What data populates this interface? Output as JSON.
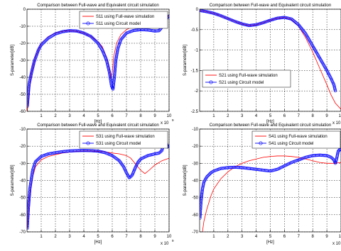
{
  "chart_data": [
    {
      "type": "line",
      "title": "Comparison between Full-wave and Equivalent circuit simulation",
      "xlabel": "[Hz]",
      "ylabel": "S-parameter[dB]",
      "x_exponent": "x 10",
      "x_exponent_power": "9",
      "xlim": [
        0,
        10
      ],
      "ylim": [
        -60,
        0
      ],
      "xticks": [
        "1",
        "2",
        "3",
        "4",
        "5",
        "6",
        "7",
        "8",
        "9",
        "10"
      ],
      "yticks": [
        "-60",
        "-50",
        "-40",
        "-30",
        "-20",
        "-10",
        "0"
      ],
      "grid": true,
      "legend_position": "top-right",
      "series": [
        {
          "name": "S11 using Full-wave simulation",
          "style": "line",
          "color": "#ff0000",
          "x": [
            0.02,
            0.3,
            0.6,
            1.0,
            1.5,
            2.0,
            2.5,
            3.0,
            3.5,
            4.0,
            4.5,
            5.0,
            5.3,
            5.6,
            5.8,
            5.9,
            6.0,
            6.1,
            6.3,
            6.6,
            7.0,
            7.5,
            8.0,
            8.5,
            9.0,
            9.4,
            9.7,
            9.9,
            10.0
          ],
          "y": [
            -60,
            -38,
            -28,
            -20,
            -16,
            -14,
            -13,
            -12.6,
            -13,
            -14,
            -16,
            -19,
            -22,
            -28,
            -35,
            -41,
            -37,
            -28,
            -20,
            -15,
            -12,
            -10,
            -9,
            -8.5,
            -8,
            -7,
            -5.5,
            -4.2,
            -4
          ]
        },
        {
          "name": "S11 using Circuit model",
          "style": "circles",
          "color": "#0000ff",
          "x": [
            0.02,
            0.15,
            0.3,
            0.5,
            0.8,
            1.0,
            1.5,
            2.0,
            2.5,
            3.0,
            3.5,
            4.0,
            4.5,
            5.0,
            5.3,
            5.6,
            5.8,
            5.95,
            6.05,
            6.15,
            6.25,
            6.4,
            6.6,
            7.0,
            7.5,
            8.0,
            8.5,
            9.0,
            9.3,
            9.5,
            9.6,
            9.7,
            9.8,
            9.9,
            10.0
          ],
          "y": [
            -57,
            -44,
            -38,
            -31,
            -24,
            -21,
            -17,
            -14.5,
            -13.2,
            -12.6,
            -12.8,
            -14,
            -16,
            -20,
            -24,
            -30,
            -37,
            -45,
            -47,
            -40,
            -30,
            -23,
            -18,
            -14,
            -12.5,
            -12,
            -12.2,
            -12.8,
            -12.6,
            -10.5,
            -8,
            -7,
            -6,
            -4.5,
            -4
          ]
        }
      ]
    },
    {
      "type": "line",
      "title": "Comparison between Full-wave and Equivalent circuit simulation",
      "xlabel": "[Hz]",
      "ylabel": "S-parameter[dB]",
      "x_exponent": "x 10",
      "x_exponent_power": "9",
      "xlim": [
        0,
        10
      ],
      "ylim": [
        -2.5,
        0
      ],
      "xticks": [
        "1",
        "2",
        "3",
        "4",
        "5",
        "6",
        "7",
        "8",
        "9",
        "10"
      ],
      "yticks": [
        "-2.5",
        "-2",
        "-1.5",
        "-1",
        "-0.5",
        "0"
      ],
      "grid": true,
      "legend_position": "bottom-left",
      "series": [
        {
          "name": "S21 using Full-wave simulation",
          "style": "line",
          "color": "#ff0000",
          "x": [
            0,
            0.5,
            1.0,
            1.5,
            2.0,
            2.5,
            3.0,
            3.5,
            4.0,
            4.5,
            5.0,
            5.5,
            6.0,
            6.5,
            7.0,
            7.5,
            8.0,
            8.5,
            9.0,
            9.3,
            9.6,
            10.0
          ],
          "y": [
            -0.03,
            -0.06,
            -0.1,
            -0.16,
            -0.23,
            -0.3,
            -0.36,
            -0.4,
            -0.38,
            -0.33,
            -0.27,
            -0.22,
            -0.2,
            -0.25,
            -0.42,
            -0.7,
            -1.05,
            -1.45,
            -1.85,
            -2.1,
            -2.3,
            -2.45
          ]
        },
        {
          "name": "S21 using Circuit model",
          "style": "circles",
          "color": "#0000ff",
          "x": [
            0,
            0.5,
            1.0,
            1.5,
            2.0,
            2.5,
            3.0,
            3.5,
            4.0,
            4.5,
            5.0,
            5.5,
            6.0,
            6.5,
            7.0,
            7.5,
            8.0,
            8.5,
            9.0,
            9.3,
            9.5,
            9.6
          ],
          "y": [
            -0.03,
            -0.06,
            -0.1,
            -0.16,
            -0.23,
            -0.3,
            -0.36,
            -0.4,
            -0.38,
            -0.33,
            -0.27,
            -0.22,
            -0.2,
            -0.24,
            -0.38,
            -0.6,
            -0.9,
            -1.2,
            -1.5,
            -1.7,
            -1.85,
            -2.0
          ]
        }
      ]
    },
    {
      "type": "line",
      "title": "Comparison between Full-wave and Equivalent circuit simulation",
      "xlabel": "[Hz]",
      "ylabel": "S-parameter[dB]",
      "x_exponent": "x 10",
      "x_exponent_power": "9",
      "xlim": [
        0,
        10
      ],
      "ylim": [
        -70,
        -10
      ],
      "xticks": [
        "1",
        "2",
        "3",
        "4",
        "5",
        "6",
        "7",
        "8",
        "9",
        "10"
      ],
      "yticks": [
        "-70",
        "-60",
        "-50",
        "-40",
        "-30",
        "-20",
        "-10"
      ],
      "grid": true,
      "legend_position": "top-right",
      "series": [
        {
          "name": "S31 using Full-wave simulation",
          "style": "line",
          "color": "#ff0000",
          "x": [
            0.02,
            0.1,
            0.2,
            0.4,
            0.6,
            1.0,
            1.5,
            2.0,
            2.5,
            3.0,
            3.5,
            4.0,
            4.5,
            5.0,
            5.5,
            6.0,
            6.5,
            7.0,
            7.3,
            7.6,
            8.0,
            8.3,
            8.6,
            9.0,
            9.5,
            10.0
          ],
          "y": [
            -68,
            -58,
            -48,
            -38,
            -32,
            -28,
            -26,
            -25,
            -24,
            -23.5,
            -23,
            -22.8,
            -22.8,
            -23,
            -23.3,
            -24,
            -24.5,
            -25.5,
            -27,
            -30,
            -34,
            -36,
            -34,
            -31,
            -28.5,
            -27
          ]
        },
        {
          "name": "S31 using Circuit model",
          "style": "circles",
          "color": "#0000ff",
          "x": [
            0.02,
            0.1,
            0.2,
            0.4,
            0.6,
            1.0,
            1.5,
            2.0,
            2.5,
            3.0,
            3.5,
            4.0,
            4.5,
            5.0,
            5.5,
            6.0,
            6.5,
            6.8,
            7.0,
            7.2,
            7.4,
            7.6,
            7.8,
            8.0,
            8.5,
            9.0,
            9.3,
            9.5,
            9.6,
            9.7,
            9.8,
            9.9,
            10.0
          ],
          "y": [
            -68,
            -56,
            -45,
            -34,
            -29,
            -26,
            -24.5,
            -23.8,
            -23.2,
            -22.8,
            -22.6,
            -22.5,
            -22.6,
            -22.9,
            -23.8,
            -25.5,
            -28.5,
            -32,
            -35.5,
            -38.5,
            -37,
            -33,
            -29.5,
            -27.5,
            -25.5,
            -24.5,
            -24,
            -22.5,
            -18.5,
            -16.5,
            -18,
            -20.5,
            -20
          ]
        }
      ]
    },
    {
      "type": "line",
      "title": "Comparison between Full-wave and Equivalent circuit simulation",
      "xlabel": "[Hz]",
      "ylabel": "S-parameter[dB]",
      "x_exponent": "x 10",
      "x_exponent_power": "9",
      "xlim": [
        0,
        10
      ],
      "ylim": [
        -70,
        -10
      ],
      "xticks": [
        "1",
        "2",
        "3",
        "4",
        "5",
        "6",
        "7",
        "8",
        "9",
        "10"
      ],
      "yticks": [
        "-70",
        "-60",
        "-50",
        "-40",
        "-30",
        "-20",
        "-10"
      ],
      "grid": true,
      "legend_position": "top-right",
      "series": [
        {
          "name": "S41 using Full-wave simulation",
          "style": "line",
          "color": "#ff0000",
          "x": [
            0.2,
            0.3,
            0.5,
            0.8,
            1.0,
            1.5,
            2.0,
            2.5,
            3.0,
            3.5,
            4.0,
            4.5,
            5.0,
            5.5,
            6.0,
            6.5,
            7.0,
            7.5,
            8.0,
            8.5,
            9.0,
            9.5,
            10.0
          ],
          "y": [
            -70,
            -64,
            -57,
            -49,
            -45,
            -39,
            -35,
            -32,
            -30,
            -28.5,
            -27.5,
            -26.5,
            -26,
            -25.7,
            -25.7,
            -26,
            -26.5,
            -27.5,
            -28.5,
            -29.5,
            -30,
            -30,
            -29.5
          ]
        },
        {
          "name": "S41 using Circuit model",
          "style": "circles",
          "color": "#0000ff",
          "x": [
            0.02,
            0.1,
            0.2,
            0.3,
            0.5,
            0.8,
            1.0,
            1.5,
            2.0,
            2.5,
            3.0,
            3.5,
            4.0,
            4.5,
            5.0,
            5.5,
            6.0,
            6.5,
            7.0,
            7.5,
            8.0,
            8.5,
            9.0,
            9.3,
            9.5,
            9.6,
            9.7,
            9.8,
            9.9,
            10.0
          ],
          "y": [
            -62,
            -52,
            -45,
            -41,
            -38,
            -35.5,
            -34.5,
            -33,
            -32.5,
            -32.3,
            -32.5,
            -33,
            -33.5,
            -34,
            -34.5,
            -33.5,
            -31.5,
            -29.5,
            -28,
            -26.5,
            -25.5,
            -25.2,
            -25.5,
            -26.5,
            -28,
            -30,
            -27,
            -23,
            -22,
            -22
          ]
        }
      ]
    }
  ]
}
